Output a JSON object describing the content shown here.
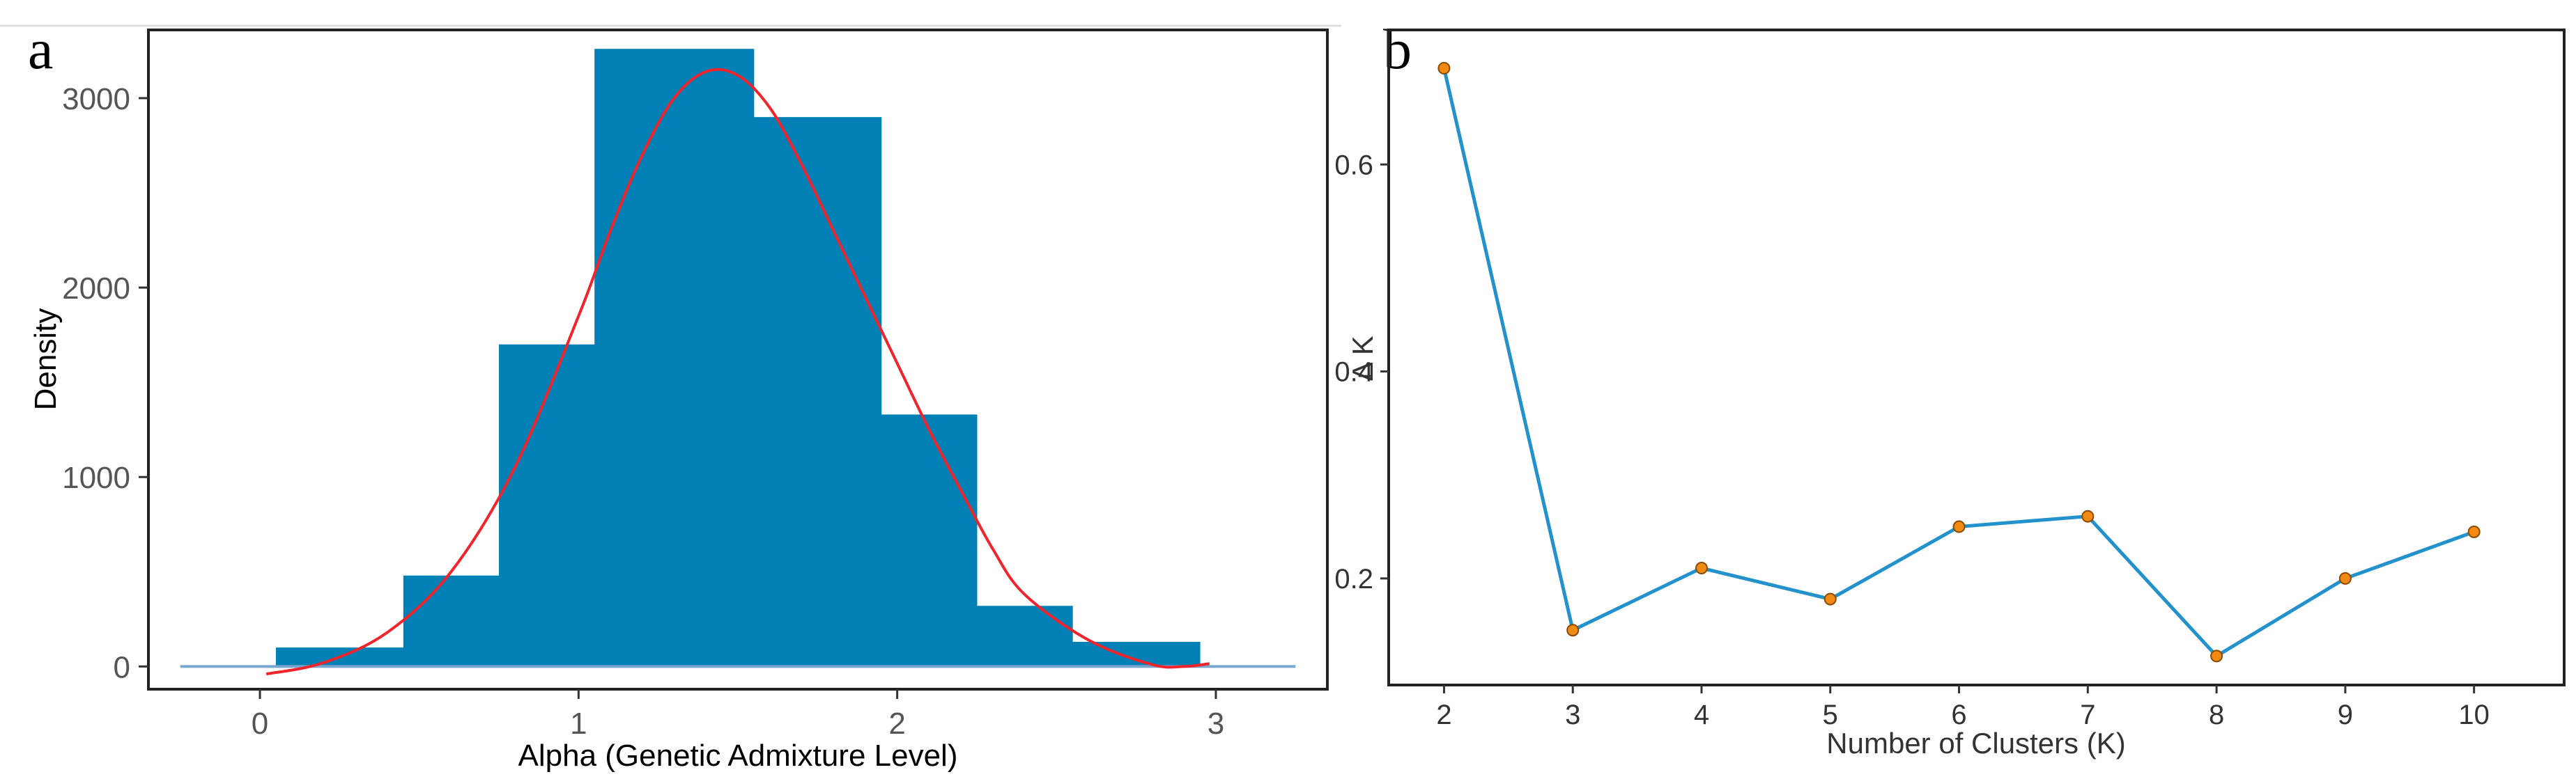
{
  "colors": {
    "bar_fill": "#0080B5",
    "density_curve": "#F0242A",
    "baseline": "#79A7CF",
    "line_b": "#2391CB",
    "marker_fill": "#F08A12",
    "marker_edge": "#8A4A00",
    "frame": "#222222"
  },
  "chart_data": [
    {
      "panel": "a",
      "type": "bar",
      "title": "",
      "xlabel": "Alpha (Genetic Admixture Level)",
      "ylabel": "Density",
      "xlim": [
        -0.35,
        3.35
      ],
      "ylim": [
        -120,
        3360
      ],
      "xticks": [
        0,
        1,
        2,
        3
      ],
      "yticks": [
        0,
        1000,
        2000,
        3000
      ],
      "bins": [
        {
          "x0": 0.05,
          "x1": 0.45,
          "value": 100
        },
        {
          "x0": 0.45,
          "x1": 0.75,
          "value": 480
        },
        {
          "x0": 0.75,
          "x1": 1.05,
          "value": 1700
        },
        {
          "x0": 1.05,
          "x1": 1.55,
          "value": 3260
        },
        {
          "x0": 1.55,
          "x1": 1.95,
          "value": 2900
        },
        {
          "x0": 1.95,
          "x1": 2.25,
          "value": 1330
        },
        {
          "x0": 2.25,
          "x1": 2.55,
          "value": 320
        },
        {
          "x0": 2.55,
          "x1": 2.95,
          "value": 130
        }
      ],
      "baseline_range": [
        -0.25,
        3.25
      ],
      "density_curve": {
        "x": [
          0.02,
          0.2,
          0.4,
          0.6,
          0.8,
          1.0,
          1.1,
          1.2,
          1.3,
          1.4,
          1.5,
          1.6,
          1.7,
          1.8,
          1.9,
          2.0,
          2.1,
          2.2,
          2.3,
          2.4,
          2.6,
          2.8,
          2.9,
          2.98
        ],
        "y": [
          -40,
          20,
          180,
          500,
          1050,
          1850,
          2300,
          2700,
          3000,
          3140,
          3120,
          2950,
          2650,
          2300,
          1950,
          1600,
          1250,
          930,
          620,
          380,
          140,
          10,
          0,
          15
        ]
      }
    },
    {
      "panel": "b",
      "type": "line",
      "title": "",
      "xlabel": "Number of Clusters (K)",
      "ylabel": "Δ K",
      "xlim": [
        1.57,
        10.7
      ],
      "ylim": [
        0.097,
        0.73
      ],
      "xticks": [
        2,
        3,
        4,
        5,
        6,
        7,
        8,
        9,
        10
      ],
      "yticks": [
        0.2,
        0.4,
        0.6
      ],
      "x": [
        2,
        3,
        4,
        5,
        6,
        7,
        8,
        9,
        10
      ],
      "y": [
        0.693,
        0.15,
        0.21,
        0.18,
        0.25,
        0.26,
        0.125,
        0.2,
        0.245
      ]
    }
  ]
}
